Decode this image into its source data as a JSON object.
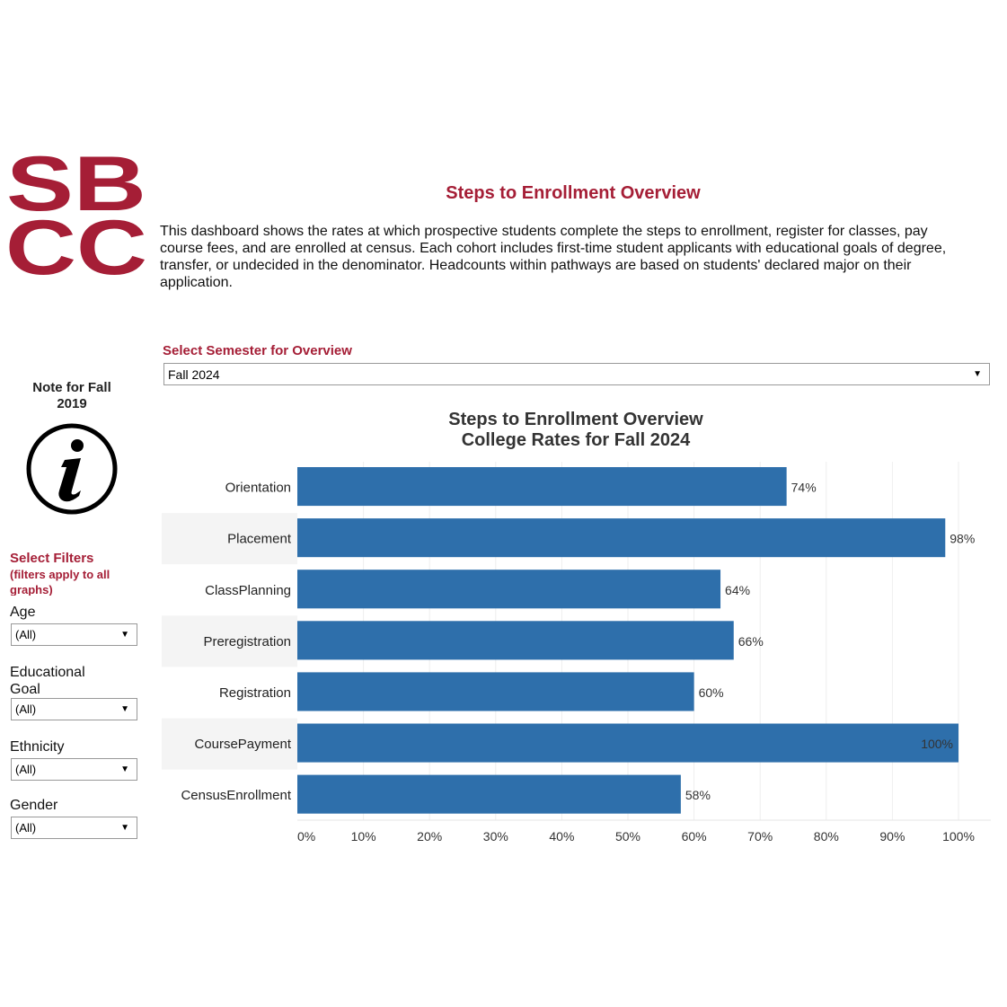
{
  "header": {
    "logo_text": "SBCC",
    "title": "Steps to Enrollment Overview",
    "description": "This dashboard shows the rates at which prospective students complete the steps to enrollment, register for classes, pay course fees, and are enrolled at census. Each cohort includes first-time student applicants with educational goals of degree, transfer, or undecided in the denominator. Headcounts within pathways are based on students' declared major on their application."
  },
  "semester": {
    "label": "Select Semester for Overview",
    "value": "Fall 2024"
  },
  "note": {
    "label": "Note for Fall 2019",
    "icon": "info-icon"
  },
  "filters": {
    "title": "Select Filters",
    "subtitle": "(filters apply to all graphs)",
    "items": [
      {
        "label": "Age",
        "value": "(All)"
      },
      {
        "label": "Educational Goal",
        "value": "(All)"
      },
      {
        "label": "Ethnicity",
        "value": "(All)"
      },
      {
        "label": "Gender",
        "value": "(All)"
      }
    ]
  },
  "colors": {
    "brand": "#a51e36",
    "bar": "#2e6fab"
  },
  "chart_data": {
    "type": "bar",
    "orientation": "horizontal",
    "title": "Steps to Enrollment Overview",
    "subtitle": "College Rates for Fall 2024",
    "categories": [
      "Orientation",
      "Placement",
      "ClassPlanning",
      "Preregistration",
      "Registration",
      "CoursePayment",
      "CensusEnrollment"
    ],
    "values": [
      74,
      98,
      64,
      66,
      60,
      100,
      58
    ],
    "data_labels": [
      "74%",
      "98%",
      "64%",
      "66%",
      "60%",
      "100%",
      "58%"
    ],
    "xlim": [
      0,
      100
    ],
    "xticks": [
      "0%",
      "10%",
      "20%",
      "30%",
      "40%",
      "50%",
      "60%",
      "70%",
      "80%",
      "90%",
      "100%"
    ],
    "grid": true
  }
}
